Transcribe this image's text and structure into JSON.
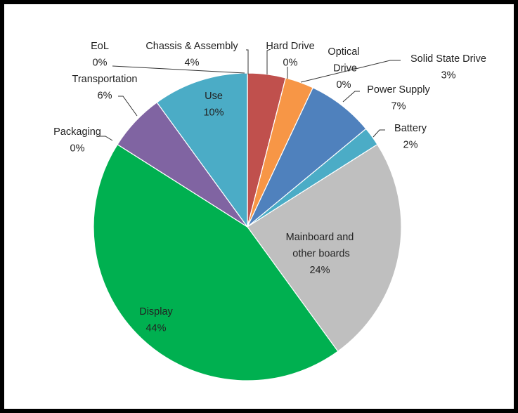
{
  "chart_data": {
    "type": "pie",
    "categories": [
      "Chassis & Assembly",
      "Hard Drive",
      "Optical Drive",
      "Solid State Drive",
      "Power Supply",
      "Battery",
      "Mainboard and other boards",
      "Display",
      "Packaging",
      "Transportation",
      "Use",
      "EoL"
    ],
    "values": [
      4,
      0,
      0,
      3,
      7,
      2,
      24,
      44,
      0,
      6,
      10,
      0
    ],
    "value_labels": [
      "4%",
      "0%",
      "0%",
      "3%",
      "7%",
      "2%",
      "24%",
      "44%",
      "0%",
      "6%",
      "10%",
      "0%"
    ],
    "colors": [
      "#c0504d",
      "#9b9b9b",
      "#bfbfbf",
      "#f79646",
      "#4f81bd",
      "#4bacc6",
      "#bfbfbf",
      "#00b050",
      "#9bbb59",
      "#8064a2",
      "#4bacc6",
      "#e46c0a"
    ]
  }
}
